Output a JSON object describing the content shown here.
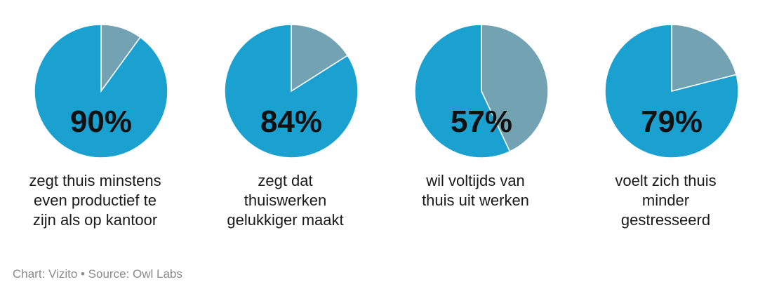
{
  "chart_data": [
    {
      "type": "pie",
      "values": [
        90,
        10
      ],
      "colors": [
        "#1ba1cf",
        "#73a2b2"
      ],
      "data_label": "90%",
      "caption": [
        "zegt thuis minstens",
        "even productief te",
        "zijn als op kantoor"
      ]
    },
    {
      "type": "pie",
      "values": [
        84,
        16
      ],
      "colors": [
        "#1ba1cf",
        "#73a2b2"
      ],
      "data_label": "84%",
      "caption": [
        "zegt dat",
        "thuiswerken",
        "gelukkiger maakt"
      ]
    },
    {
      "type": "pie",
      "values": [
        57,
        43
      ],
      "colors": [
        "#1ba1cf",
        "#73a2b2"
      ],
      "data_label": "57%",
      "caption": [
        "wil voltijds van",
        "thuis uit werken"
      ]
    },
    {
      "type": "pie",
      "values": [
        79,
        21
      ],
      "colors": [
        "#1ba1cf",
        "#73a2b2"
      ],
      "data_label": "79%",
      "caption": [
        "voelt zich thuis",
        "minder",
        "gestresseerd"
      ]
    }
  ],
  "footer": {
    "credit": "Chart: Vizito • Source: Owl Labs"
  }
}
